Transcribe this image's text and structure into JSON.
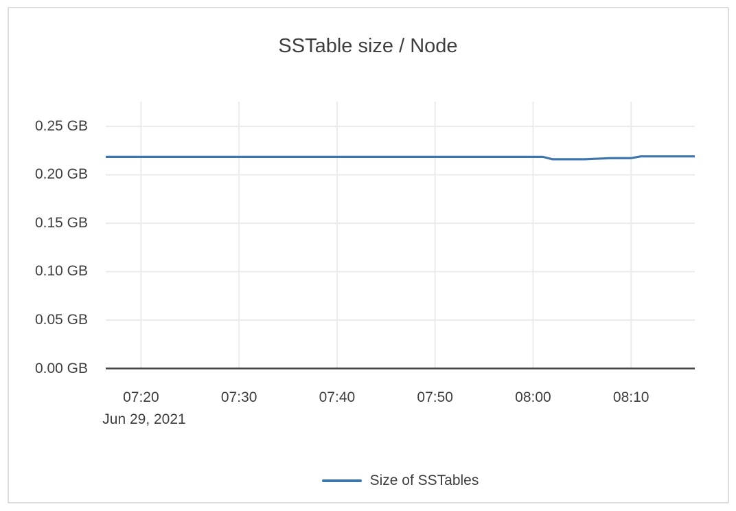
{
  "chart_data": {
    "type": "line",
    "title": "SSTable size / Node",
    "date_label": "Jun 29, 2021",
    "grid": true,
    "legend_position": "bottom-center",
    "ylabel_unit": "GB",
    "x_ticks": [
      {
        "minutes_after_0700": 20,
        "label": "07:20"
      },
      {
        "minutes_after_0700": 30,
        "label": "07:30"
      },
      {
        "minutes_after_0700": 40,
        "label": "07:40"
      },
      {
        "minutes_after_0700": 50,
        "label": "07:50"
      },
      {
        "minutes_after_0700": 60,
        "label": "08:00"
      },
      {
        "minutes_after_0700": 70,
        "label": "08:10"
      }
    ],
    "y_ticks": [
      {
        "value": 0.25,
        "label": "0.25 GB"
      },
      {
        "value": 0.2,
        "label": "0.20 GB"
      },
      {
        "value": 0.15,
        "label": "0.15 GB"
      },
      {
        "value": 0.1,
        "label": "0.10 GB"
      },
      {
        "value": 0.05,
        "label": "0.05 GB"
      },
      {
        "value": 0.0,
        "label": "0.00 GB"
      }
    ],
    "x_range_minutes_after_0700": [
      16.4,
      76.5
    ],
    "y_range_gb": [
      0,
      0.2755
    ],
    "series": [
      {
        "name": "Size of SSTables",
        "color": "#3c76ad",
        "points": [
          {
            "time": "07:16",
            "minutes_after_0700": 16.4,
            "gb": 0.2185
          },
          {
            "time": "08:01",
            "minutes_after_0700": 61.0,
            "gb": 0.2185
          },
          {
            "time": "08:02",
            "minutes_after_0700": 62.0,
            "gb": 0.216
          },
          {
            "time": "08:05",
            "minutes_after_0700": 65.3,
            "gb": 0.216
          },
          {
            "time": "08:06",
            "minutes_after_0700": 66.3,
            "gb": 0.2165
          },
          {
            "time": "08:08",
            "minutes_after_0700": 68.0,
            "gb": 0.2172
          },
          {
            "time": "08:10",
            "minutes_after_0700": 70.0,
            "gb": 0.2172
          },
          {
            "time": "08:11",
            "minutes_after_0700": 71.0,
            "gb": 0.219
          },
          {
            "time": "08:16",
            "minutes_after_0700": 76.5,
            "gb": 0.219
          }
        ]
      }
    ],
    "colors": {
      "line": "#3c76ad",
      "grid": "#ebebeb",
      "axis": "#454545",
      "text": "#3e3e3e",
      "frame_border": "#dcdcdc",
      "background": "#ffffff"
    }
  }
}
